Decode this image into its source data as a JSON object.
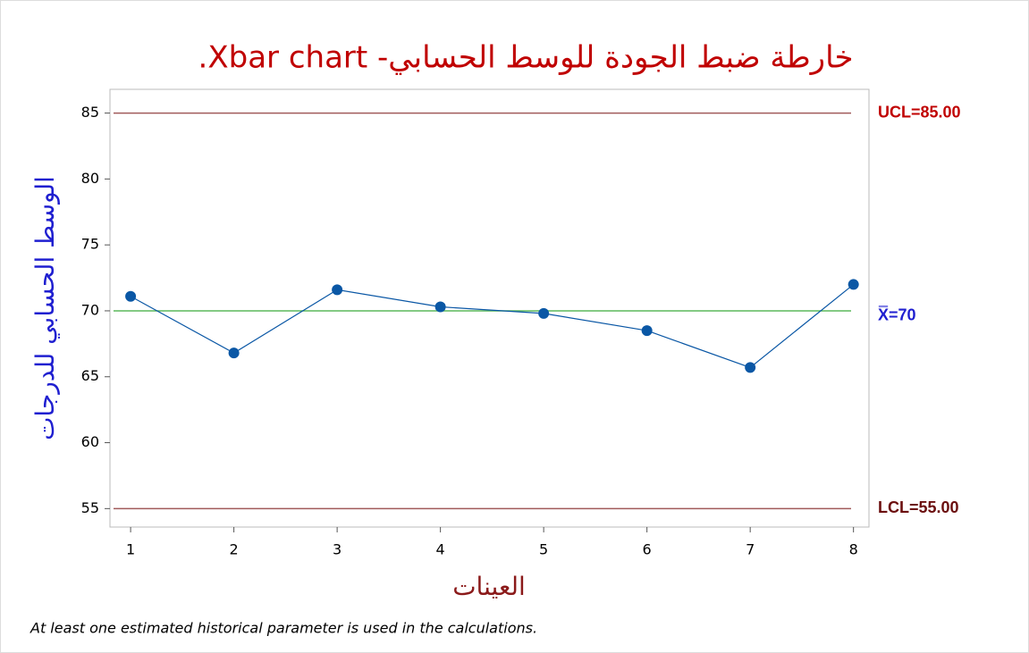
{
  "chart_data": {
    "type": "line",
    "title": "خارطة ضبط الجودة للوسط الحسابي- Xbar chart.",
    "x_label": "العينات",
    "y_label": "الوسط الحسابي للدرجات",
    "footnote": "At least one estimated historical parameter is used in the calculations.",
    "x": [
      1,
      2,
      3,
      4,
      5,
      6,
      7,
      8
    ],
    "series": [
      {
        "name": "Xbar",
        "color": "#0a57a5",
        "values": [
          71.1,
          66.8,
          71.6,
          70.3,
          69.8,
          68.5,
          65.7,
          72.0
        ]
      }
    ],
    "control_lines": [
      {
        "label": "UCL=85.00",
        "value": 85,
        "color": "#a05a5a",
        "label_color": "#c00000"
      },
      {
        "label": "X̿=70",
        "value": 70,
        "color": "#5cb85c",
        "label_color": "#1f1fd0"
      },
      {
        "label": "LCL=55.00",
        "value": 55,
        "color": "#a05a5a",
        "label_color": "#6b0f0f"
      }
    ],
    "xlim": [
      0.8,
      8.15
    ],
    "ylim": [
      53.6,
      86.8
    ],
    "xticks": [
      1,
      2,
      3,
      4,
      5,
      6,
      7,
      8
    ],
    "yticks": [
      55,
      60,
      65,
      70,
      75,
      80,
      85
    ]
  }
}
